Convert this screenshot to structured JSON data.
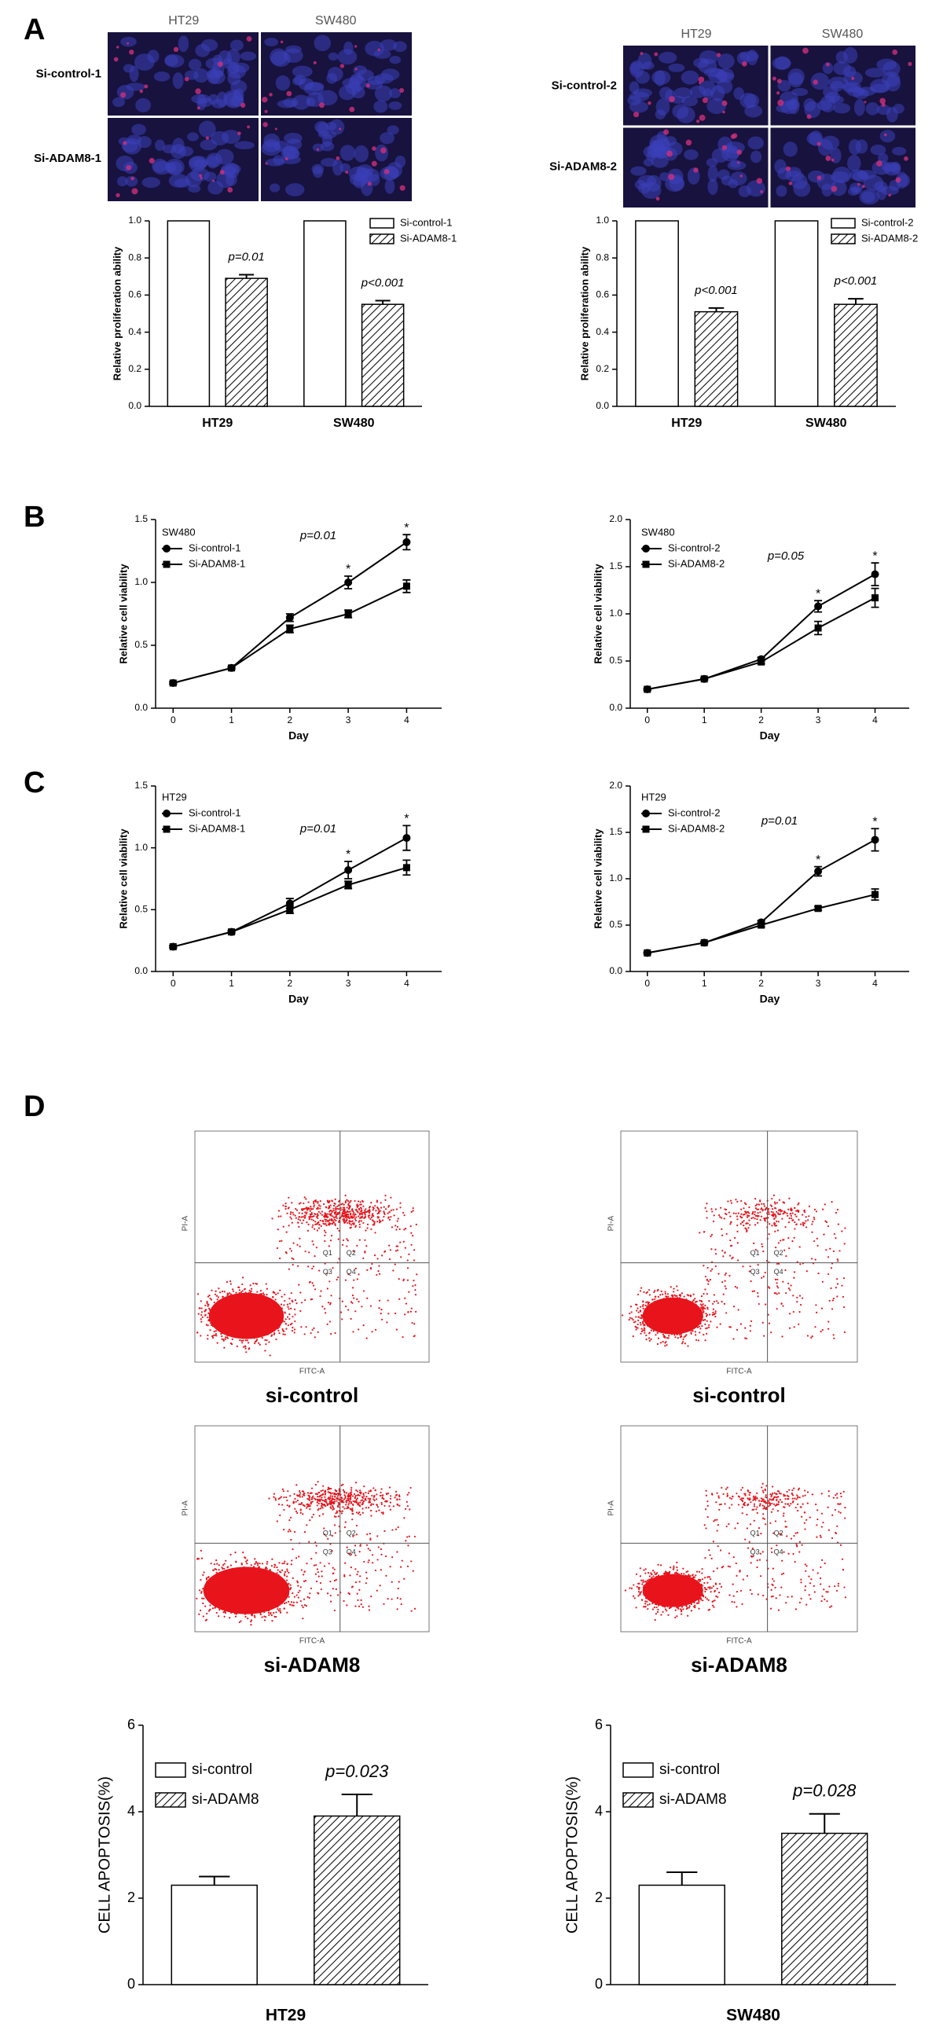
{
  "panels": [
    "A",
    "B",
    "C",
    "D"
  ],
  "micrographs": [
    {
      "columns": [
        "HT29",
        "SW480"
      ],
      "rows": [
        "Si-control-1",
        "Si-ADAM8-1"
      ]
    },
    {
      "columns": [
        "HT29",
        "SW480"
      ],
      "rows": [
        "Si-control-2",
        "Si-ADAM8-2"
      ]
    }
  ],
  "flow": [
    {
      "caption": "si-control",
      "x_label": "FITC-A",
      "y_label": "PI-A",
      "quadrants": [
        "Q1",
        "Q2",
        "Q3",
        "Q4"
      ]
    },
    {
      "caption": "si-control",
      "x_label": "FITC-A",
      "y_label": "PI-A",
      "quadrants": [
        "Q1",
        "Q2",
        "Q3",
        "Q4"
      ]
    },
    {
      "caption": "si-ADAM8",
      "x_label": "FITC-A",
      "y_label": "PI-A",
      "quadrants": [
        "Q1",
        "Q2",
        "Q3",
        "Q4"
      ]
    },
    {
      "caption": "si-ADAM8",
      "x_label": "FITC-A",
      "y_label": "PI-A",
      "quadrants": [
        "Q1",
        "Q2",
        "Q3",
        "Q4"
      ]
    }
  ],
  "chart_data": [
    {
      "type": "bar",
      "ylabel": "Relative proliferation ability",
      "categories": [
        "HT29",
        "SW480"
      ],
      "series": [
        {
          "name": "Si-control-1",
          "color": "#ffffff",
          "values": [
            1.0,
            1.0
          ]
        },
        {
          "name": "Si-ADAM8-1",
          "color": "#ffffff",
          "pattern": "hatch",
          "values": [
            0.69,
            0.55
          ],
          "errors": [
            0.02,
            0.02
          ]
        }
      ],
      "annotations": [
        "p=0.01",
        "p<0.001"
      ],
      "ylim": [
        0,
        1.0
      ],
      "yticks": [
        {
          "value": 0,
          "label": "0.0"
        },
        0.2,
        0.4,
        0.6,
        0.8,
        {
          "value": 1,
          "label": "1.0"
        }
      ]
    },
    {
      "type": "bar",
      "ylabel": "Relative proliferation ability",
      "categories": [
        "HT29",
        "SW480"
      ],
      "series": [
        {
          "name": "Si-control-2",
          "color": "#ffffff",
          "values": [
            1.0,
            1.0
          ]
        },
        {
          "name": "Si-ADAM8-2",
          "color": "#ffffff",
          "pattern": "hatch",
          "values": [
            0.51,
            0.55
          ],
          "errors": [
            0.02,
            0.03
          ]
        }
      ],
      "annotations": [
        "p<0.001",
        "p<0.001"
      ],
      "ylim": [
        0,
        1.0
      ],
      "yticks": [
        {
          "value": 0,
          "label": "0.0"
        },
        0.2,
        0.4,
        0.6,
        0.8,
        {
          "value": 1,
          "label": "1.0"
        }
      ]
    },
    {
      "type": "line",
      "legend_title": "SW480",
      "xlabel": "Day",
      "ylabel": "Relative cell viability",
      "annotation": "p=0.01",
      "x": [
        0,
        1,
        2,
        3,
        4
      ],
      "xlim": [
        -0.3,
        4.6
      ],
      "xticks": [
        0,
        1,
        2,
        3,
        4
      ],
      "ylim": [
        0,
        1.5
      ],
      "yticks": [
        {
          "value": 0,
          "label": "0.0"
        },
        0.5,
        {
          "value": 1,
          "label": "1.0"
        },
        1.5
      ],
      "asterisks": {
        "label": "*",
        "x": [
          3,
          4
        ]
      },
      "series": [
        {
          "name": "Si-control-1",
          "color": "#000000",
          "marker": "circle",
          "values": [
            0.2,
            0.32,
            0.72,
            1.0,
            1.32
          ],
          "errors": [
            0.01,
            0.01,
            0.03,
            0.05,
            0.06
          ]
        },
        {
          "name": "Si-ADAM8-1",
          "color": "#000000",
          "marker": "square",
          "values": [
            0.2,
            0.32,
            0.63,
            0.75,
            0.97
          ],
          "errors": [
            0.01,
            0.01,
            0.03,
            0.03,
            0.05
          ]
        }
      ]
    },
    {
      "type": "line",
      "legend_title": "SW480",
      "xlabel": "Day",
      "ylabel": "Relative cell viability",
      "annotation": "p=0.05",
      "x": [
        0,
        1,
        2,
        3,
        4
      ],
      "xlim": [
        -0.3,
        4.6
      ],
      "xticks": [
        0,
        1,
        2,
        3,
        4
      ],
      "ylim": [
        0,
        2.0
      ],
      "yticks": [
        {
          "value": 0,
          "label": "0.0"
        },
        0.5,
        {
          "value": 1,
          "label": "1.0"
        },
        1.5,
        {
          "value": 2,
          "label": "2.0"
        }
      ],
      "asterisks": {
        "label": "*",
        "x": [
          3,
          4
        ]
      },
      "series": [
        {
          "name": "Si-control-2",
          "color": "#000000",
          "marker": "circle",
          "values": [
            0.2,
            0.31,
            0.52,
            1.08,
            1.42
          ],
          "errors": [
            0.01,
            0.01,
            0.02,
            0.06,
            0.12
          ]
        },
        {
          "name": "Si-ADAM8-2",
          "color": "#000000",
          "marker": "square",
          "values": [
            0.2,
            0.31,
            0.49,
            0.85,
            1.17
          ],
          "errors": [
            0.01,
            0.01,
            0.02,
            0.07,
            0.1
          ]
        }
      ]
    },
    {
      "type": "line",
      "legend_title": "HT29",
      "xlabel": "Day",
      "ylabel": "Relative cell viability",
      "annotation": "p=0.01",
      "x": [
        0,
        1,
        2,
        3,
        4
      ],
      "xlim": [
        -0.3,
        4.6
      ],
      "xticks": [
        0,
        1,
        2,
        3,
        4
      ],
      "ylim": [
        0,
        1.5
      ],
      "yticks": [
        {
          "value": 0,
          "label": "0.0"
        },
        0.5,
        {
          "value": 1,
          "label": "1.0"
        },
        1.5
      ],
      "asterisks": {
        "label": "*",
        "x": [
          3,
          4
        ]
      },
      "series": [
        {
          "name": "Si-control-1",
          "color": "#000000",
          "marker": "circle",
          "values": [
            0.2,
            0.32,
            0.55,
            0.82,
            1.08
          ],
          "errors": [
            0.01,
            0.01,
            0.04,
            0.07,
            0.1
          ]
        },
        {
          "name": "Si-ADAM8-1",
          "color": "#000000",
          "marker": "square",
          "values": [
            0.2,
            0.32,
            0.5,
            0.7,
            0.84
          ],
          "errors": [
            0.01,
            0.01,
            0.03,
            0.03,
            0.06
          ]
        }
      ]
    },
    {
      "type": "line",
      "legend_title": "HT29",
      "xlabel": "Day",
      "ylabel": "Relative cell viability",
      "annotation": "p=0.01",
      "x": [
        0,
        1,
        2,
        3,
        4
      ],
      "xlim": [
        -0.3,
        4.6
      ],
      "xticks": [
        0,
        1,
        2,
        3,
        4
      ],
      "ylim": [
        0,
        2.0
      ],
      "yticks": [
        {
          "value": 0,
          "label": "0.0"
        },
        0.5,
        {
          "value": 1,
          "label": "1.0"
        },
        1.5,
        {
          "value": 2,
          "label": "2.0"
        }
      ],
      "asterisks": {
        "label": "*",
        "x": [
          3,
          4
        ]
      },
      "series": [
        {
          "name": "Si-control-2",
          "color": "#000000",
          "marker": "circle",
          "values": [
            0.2,
            0.31,
            0.53,
            1.08,
            1.42
          ],
          "errors": [
            0.01,
            0.01,
            0.02,
            0.05,
            0.12
          ]
        },
        {
          "name": "Si-ADAM8-2",
          "color": "#000000",
          "marker": "square",
          "values": [
            0.2,
            0.31,
            0.5,
            0.68,
            0.83
          ],
          "errors": [
            0.01,
            0.01,
            0.02,
            0.02,
            0.06
          ]
        }
      ]
    },
    {
      "type": "bar",
      "ylabel": "CELL APOPTOSIS(%)",
      "xlabel": "HT29",
      "annotation": "p=0.023",
      "series": [
        {
          "name": "si-control",
          "color": "#ffffff",
          "values": [
            2.3
          ],
          "errors": [
            0.2
          ]
        },
        {
          "name": "si-ADAM8",
          "color": "#ffffff",
          "pattern": "hatch",
          "values": [
            3.9
          ],
          "errors": [
            0.5
          ]
        }
      ],
      "ylim": [
        0,
        6
      ],
      "yticks": [
        0,
        2,
        4,
        6
      ]
    },
    {
      "type": "bar",
      "ylabel": "CELL APOPTOSIS(%)",
      "xlabel": "SW480",
      "annotation": "p=0.028",
      "series": [
        {
          "name": "si-control",
          "color": "#ffffff",
          "values": [
            2.3
          ],
          "errors": [
            0.3
          ]
        },
        {
          "name": "si-ADAM8",
          "color": "#ffffff",
          "pattern": "hatch",
          "values": [
            3.5
          ],
          "errors": [
            0.45
          ]
        }
      ],
      "ylim": [
        0,
        6
      ],
      "yticks": [
        0,
        2,
        4,
        6
      ]
    }
  ]
}
